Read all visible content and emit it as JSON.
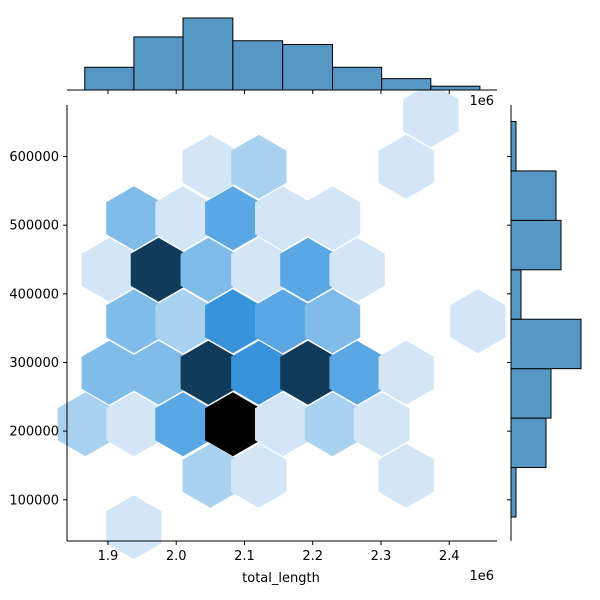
{
  "chart_data": {
    "type": "hexbin",
    "xlabel": "total_length",
    "ylabel": "",
    "x_offset_label": "1e6",
    "marginal_offset_label": "1e6",
    "xlim": [
      1840000,
      2470000
    ],
    "ylim": [
      40000,
      675000
    ],
    "x_ticks": [
      1900000,
      2000000,
      2100000,
      2200000,
      2300000,
      2400000
    ],
    "x_tick_labels": [
      "1.9",
      "2.0",
      "2.1",
      "2.2",
      "2.3",
      "2.4"
    ],
    "y_ticks": [
      100000,
      200000,
      300000,
      400000,
      500000,
      600000
    ],
    "y_tick_labels": [
      "100000",
      "200000",
      "300000",
      "400000",
      "500000",
      "600000"
    ],
    "colors": {
      "base": "#3a8fd4",
      "max": "#000000",
      "histogram_fill": "#5697c6",
      "edge": "#000000"
    },
    "hexbins": [
      {
        "x": 1938000,
        "y": 60000,
        "count": 1
      },
      {
        "x": 2050000,
        "y": 135000,
        "count": 2
      },
      {
        "x": 2121000,
        "y": 135000,
        "count": 1
      },
      {
        "x": 2337000,
        "y": 135000,
        "count": 1
      },
      {
        "x": 1867000,
        "y": 210000,
        "count": 2
      },
      {
        "x": 1938000,
        "y": 210000,
        "count": 1
      },
      {
        "x": 2010000,
        "y": 210000,
        "count": 4
      },
      {
        "x": 2083000,
        "y": 210000,
        "count": 8
      },
      {
        "x": 2156000,
        "y": 210000,
        "count": 1
      },
      {
        "x": 2229000,
        "y": 210000,
        "count": 2
      },
      {
        "x": 2301000,
        "y": 210000,
        "count": 1
      },
      {
        "x": 1902000,
        "y": 285000,
        "count": 3
      },
      {
        "x": 1974000,
        "y": 285000,
        "count": 3
      },
      {
        "x": 2047000,
        "y": 285000,
        "count": 7
      },
      {
        "x": 2121000,
        "y": 285000,
        "count": 5
      },
      {
        "x": 2193000,
        "y": 285000,
        "count": 7
      },
      {
        "x": 2265000,
        "y": 285000,
        "count": 4
      },
      {
        "x": 2337000,
        "y": 285000,
        "count": 1
      },
      {
        "x": 1938000,
        "y": 360000,
        "count": 3
      },
      {
        "x": 2010000,
        "y": 360000,
        "count": 2
      },
      {
        "x": 2083000,
        "y": 360000,
        "count": 5
      },
      {
        "x": 2156000,
        "y": 360000,
        "count": 4
      },
      {
        "x": 2229000,
        "y": 360000,
        "count": 3
      },
      {
        "x": 2442000,
        "y": 360000,
        "count": 1
      },
      {
        "x": 1902000,
        "y": 435000,
        "count": 1
      },
      {
        "x": 1974000,
        "y": 435000,
        "count": 7
      },
      {
        "x": 2047000,
        "y": 435000,
        "count": 3
      },
      {
        "x": 2121000,
        "y": 435000,
        "count": 1
      },
      {
        "x": 2193000,
        "y": 435000,
        "count": 4
      },
      {
        "x": 2265000,
        "y": 435000,
        "count": 1
      },
      {
        "x": 1938000,
        "y": 510000,
        "count": 3
      },
      {
        "x": 2010000,
        "y": 510000,
        "count": 1
      },
      {
        "x": 2083000,
        "y": 510000,
        "count": 4
      },
      {
        "x": 2156000,
        "y": 510000,
        "count": 1
      },
      {
        "x": 2229000,
        "y": 510000,
        "count": 1
      },
      {
        "x": 2050000,
        "y": 585000,
        "count": 1
      },
      {
        "x": 2121000,
        "y": 585000,
        "count": 2
      },
      {
        "x": 2337000,
        "y": 585000,
        "count": 1
      },
      {
        "x": 2373000,
        "y": 660000,
        "count": 1
      }
    ],
    "x_marginal_hist": {
      "bin_edges": [
        1866000,
        1938000,
        2010000,
        2083000,
        2156000,
        2229000,
        2301000,
        2373000,
        2445000
      ],
      "counts": [
        6,
        14,
        19,
        13,
        12,
        6,
        3,
        1
      ]
    },
    "y_marginal_hist": {
      "bin_edges": [
        75000,
        147000,
        219000,
        291000,
        363000,
        435000,
        507000,
        579000,
        651000
      ],
      "counts": [
        1,
        7,
        8,
        14,
        2,
        10,
        9,
        1
      ]
    }
  }
}
